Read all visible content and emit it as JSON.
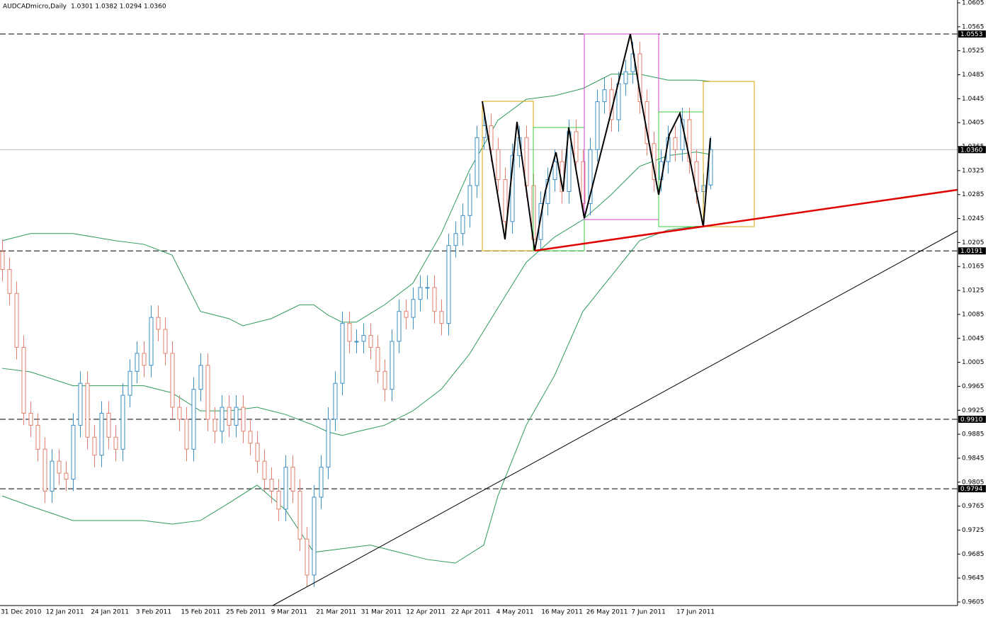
{
  "chart_data": {
    "type": "candlestick",
    "title": "AUDCADmicro,Daily",
    "quote": "1.0301 1.0382 1.0294 1.0360",
    "ylim": [
      0.9605,
      1.0605
    ],
    "yticks": [
      1.0605,
      1.0565,
      1.0525,
      1.0485,
      1.0445,
      1.0405,
      1.0365,
      1.0325,
      1.0285,
      1.0245,
      1.0205,
      1.0165,
      1.0125,
      1.0085,
      1.0045,
      1.0005,
      0.9965,
      0.9925,
      0.9885,
      0.9845,
      0.9805,
      0.9765,
      0.9725,
      0.9685,
      0.9645,
      0.9605
    ],
    "dates": [
      "31 Dec 2010",
      "12 Jan 2011",
      "24 Jan 2011",
      "3 Feb 2011",
      "15 Feb 2011",
      "25 Feb 2011",
      "9 Mar 2011",
      "21 Mar 2011",
      "31 Mar 2011",
      "12 Apr 2011",
      "22 Apr 2011",
      "4 May 2011",
      "16 May 2011",
      "26 May 2011",
      "7 Jun 2011",
      "17 Jun 2011"
    ],
    "up_color": "#3d8fc6",
    "down_color": "#e0806e",
    "candles": [
      [
        1.019,
        1.021,
        1.014,
        1.016
      ],
      [
        1.016,
        1.018,
        1.01,
        1.012
      ],
      [
        1.012,
        1.014,
        1.001,
        1.003
      ],
      [
        1.003,
        1.005,
        0.99,
        0.992
      ],
      [
        0.992,
        0.994,
        0.988,
        0.99
      ],
      [
        0.99,
        0.992,
        0.984,
        0.986
      ],
      [
        0.986,
        0.988,
        0.977,
        0.979
      ],
      [
        0.979,
        0.986,
        0.977,
        0.984
      ],
      [
        0.984,
        0.986,
        0.98,
        0.982
      ],
      [
        0.982,
        0.984,
        0.979,
        0.981
      ],
      [
        0.981,
        0.992,
        0.979,
        0.99
      ],
      [
        0.99,
        0.999,
        0.988,
        0.997
      ],
      [
        0.997,
        0.999,
        0.986,
        0.988
      ],
      [
        0.988,
        0.99,
        0.983,
        0.985
      ],
      [
        0.985,
        0.994,
        0.983,
        0.992
      ],
      [
        0.992,
        0.994,
        0.986,
        0.988
      ],
      [
        0.988,
        0.99,
        0.984,
        0.986
      ],
      [
        0.986,
        0.997,
        0.984,
        0.995
      ],
      [
        0.995,
        1.001,
        0.993,
        0.999
      ],
      [
        0.999,
        1.004,
        0.997,
        1.002
      ],
      [
        1.002,
        1.004,
        0.998,
        1.0
      ],
      [
        1.0,
        1.01,
        0.998,
        1.008
      ],
      [
        1.008,
        1.01,
        1.004,
        1.006
      ],
      [
        1.006,
        1.008,
        1.0,
        1.002
      ],
      [
        1.002,
        1.004,
        0.991,
        0.993
      ],
      [
        0.993,
        0.995,
        0.989,
        0.991
      ],
      [
        0.991,
        0.993,
        0.984,
        0.986
      ],
      [
        0.986,
        0.998,
        0.984,
        0.996
      ],
      [
        0.996,
        1.002,
        0.994,
        1.0
      ],
      [
        1.0,
        1.002,
        0.989,
        0.991
      ],
      [
        0.991,
        0.993,
        0.987,
        0.989
      ],
      [
        0.989,
        0.995,
        0.987,
        0.993
      ],
      [
        0.993,
        0.995,
        0.988,
        0.99
      ],
      [
        0.99,
        0.995,
        0.988,
        0.993
      ],
      [
        0.993,
        0.995,
        0.987,
        0.989
      ],
      [
        0.989,
        0.991,
        0.985,
        0.987
      ],
      [
        0.987,
        0.989,
        0.982,
        0.984
      ],
      [
        0.984,
        0.986,
        0.979,
        0.981
      ],
      [
        0.981,
        0.983,
        0.977,
        0.979
      ],
      [
        0.979,
        0.981,
        0.974,
        0.976
      ],
      [
        0.976,
        0.985,
        0.974,
        0.983
      ],
      [
        0.983,
        0.985,
        0.977,
        0.979
      ],
      [
        0.979,
        0.981,
        0.969,
        0.971
      ],
      [
        0.971,
        0.973,
        0.963,
        0.965
      ],
      [
        0.965,
        0.98,
        0.963,
        0.978
      ],
      [
        0.978,
        0.985,
        0.976,
        0.983
      ],
      [
        0.983,
        0.993,
        0.981,
        0.991
      ],
      [
        0.991,
        0.999,
        0.989,
        0.997
      ],
      [
        0.997,
        1.009,
        0.995,
        1.007
      ],
      [
        1.007,
        1.009,
        1.002,
        1.004
      ],
      [
        1.004,
        1.006,
        1.002,
        1.004
      ],
      [
        1.004,
        1.007,
        1.002,
        1.005
      ],
      [
        1.005,
        1.007,
        1.001,
        1.003
      ],
      [
        1.003,
        1.005,
        0.997,
        0.999
      ],
      [
        0.999,
        1.001,
        0.994,
        0.996
      ],
      [
        0.996,
        1.006,
        0.994,
        1.004
      ],
      [
        1.004,
        1.011,
        1.002,
        1.009
      ],
      [
        1.009,
        1.011,
        1.006,
        1.008
      ],
      [
        1.008,
        1.013,
        1.006,
        1.011
      ],
      [
        1.011,
        1.015,
        1.009,
        1.013
      ],
      [
        1.013,
        1.015,
        1.011,
        1.013
      ],
      [
        1.013,
        1.015,
        1.007,
        1.009
      ],
      [
        1.009,
        1.011,
        1.005,
        1.007
      ],
      [
        1.007,
        1.022,
        1.005,
        1.02
      ],
      [
        1.02,
        1.024,
        1.018,
        1.022
      ],
      [
        1.022,
        1.027,
        1.02,
        1.025
      ],
      [
        1.025,
        1.032,
        1.023,
        1.03
      ],
      [
        1.03,
        1.04,
        1.028,
        1.038
      ],
      [
        1.038,
        1.042,
        1.036,
        1.04
      ],
      [
        1.04,
        1.042,
        1.034,
        1.036
      ],
      [
        1.036,
        1.038,
        1.029,
        1.031
      ],
      [
        1.031,
        1.033,
        1.022,
        1.024
      ],
      [
        1.024,
        1.037,
        1.022,
        1.035
      ],
      [
        1.035,
        1.04,
        1.033,
        1.038
      ],
      [
        1.038,
        1.04,
        1.028,
        1.03
      ],
      [
        1.03,
        1.032,
        1.019,
        1.021
      ],
      [
        1.021,
        1.029,
        1.019,
        1.027
      ],
      [
        1.027,
        1.033,
        1.025,
        1.031
      ],
      [
        1.031,
        1.036,
        1.029,
        1.034
      ],
      [
        1.034,
        1.036,
        1.027,
        1.029
      ],
      [
        1.029,
        1.041,
        1.027,
        1.039
      ],
      [
        1.039,
        1.041,
        1.032,
        1.034
      ],
      [
        1.034,
        1.036,
        1.025,
        1.027
      ],
      [
        1.027,
        1.038,
        1.025,
        1.036
      ],
      [
        1.036,
        1.046,
        1.034,
        1.044
      ],
      [
        1.044,
        1.048,
        1.042,
        1.046
      ],
      [
        1.046,
        1.048,
        1.039,
        1.041
      ],
      [
        1.041,
        1.049,
        1.039,
        1.047
      ],
      [
        1.047,
        1.051,
        1.045,
        1.049
      ],
      [
        1.049,
        1.054,
        1.047,
        1.052
      ],
      [
        1.052,
        1.054,
        1.042,
        1.044
      ],
      [
        1.044,
        1.046,
        1.035,
        1.037
      ],
      [
        1.037,
        1.039,
        1.029,
        1.031
      ],
      [
        1.031,
        1.036,
        1.029,
        1.034
      ],
      [
        1.034,
        1.04,
        1.032,
        1.038
      ],
      [
        1.038,
        1.04,
        1.034,
        1.036
      ],
      [
        1.036,
        1.043,
        1.034,
        1.041
      ],
      [
        1.041,
        1.043,
        1.032,
        1.034
      ],
      [
        1.034,
        1.036,
        1.027,
        1.029
      ],
      [
        1.029,
        1.032,
        1.027,
        1.03
      ],
      [
        1.0301,
        1.0382,
        1.0294,
        1.036
      ]
    ],
    "bands": [
      {
        "color": "#2e9a5a",
        "x": [
          0,
          4,
          10,
          16,
          20,
          24,
          28,
          32,
          34,
          38,
          42,
          44,
          46,
          48,
          50,
          54,
          58,
          62,
          66,
          70,
          74,
          78,
          82,
          86,
          90,
          94,
          98,
          100
        ],
        "values": [
          1.0208,
          1.022,
          1.022,
          1.0208,
          1.0202,
          1.0184,
          1.009,
          1.0078,
          1.0066,
          1.0078,
          1.0101,
          1.0101,
          1.0084,
          1.0072,
          1.0072,
          1.0101,
          1.0137,
          1.022,
          1.0326,
          1.0409,
          1.0444,
          1.045,
          1.0462,
          1.0486,
          1.0486,
          1.0476,
          1.0476,
          1.0474
        ]
      },
      {
        "color": "#2e9a5a",
        "x": [
          0,
          4,
          10,
          16,
          20,
          24,
          28,
          32,
          36,
          40,
          44,
          46,
          48,
          50,
          54,
          58,
          62,
          66,
          70,
          74,
          78,
          82,
          86,
          90,
          94,
          98,
          100
        ],
        "values": [
          0.9995,
          0.9989,
          0.9966,
          0.9966,
          0.9966,
          0.9954,
          0.9924,
          0.9924,
          0.993,
          0.9918,
          0.99,
          0.9889,
          0.9883,
          0.9889,
          0.99,
          0.9924,
          0.996,
          1.0019,
          1.0096,
          1.0172,
          1.0214,
          1.0243,
          1.0285,
          1.0332,
          1.035,
          1.0356,
          1.0352
        ]
      },
      {
        "color": "#2e9a5a",
        "x": [
          0,
          4,
          10,
          16,
          20,
          24,
          28,
          32,
          36,
          40,
          44,
          48,
          52,
          56,
          60,
          64,
          68,
          70,
          74,
          78,
          82,
          86,
          90,
          94,
          98,
          100
        ],
        "values": [
          0.9782,
          0.9765,
          0.9741,
          0.9741,
          0.9741,
          0.9735,
          0.9741,
          0.977,
          0.98,
          0.9759,
          0.9688,
          0.9694,
          0.97,
          0.9688,
          0.9676,
          0.967,
          0.97,
          0.9782,
          0.99,
          0.9983,
          1.009,
          1.0149,
          1.0208,
          1.0226,
          1.0232,
          1.0232
        ]
      }
    ],
    "levels": [
      {
        "value": 1.0553,
        "label": "1.0553"
      },
      {
        "value": 1.0191,
        "label": "1.0191"
      },
      {
        "value": 0.991,
        "label": "0.9910"
      },
      {
        "value": 0.9794,
        "label": "0.9794"
      }
    ],
    "current": {
      "value": 1.036,
      "label": "1.0360"
    }
  }
}
